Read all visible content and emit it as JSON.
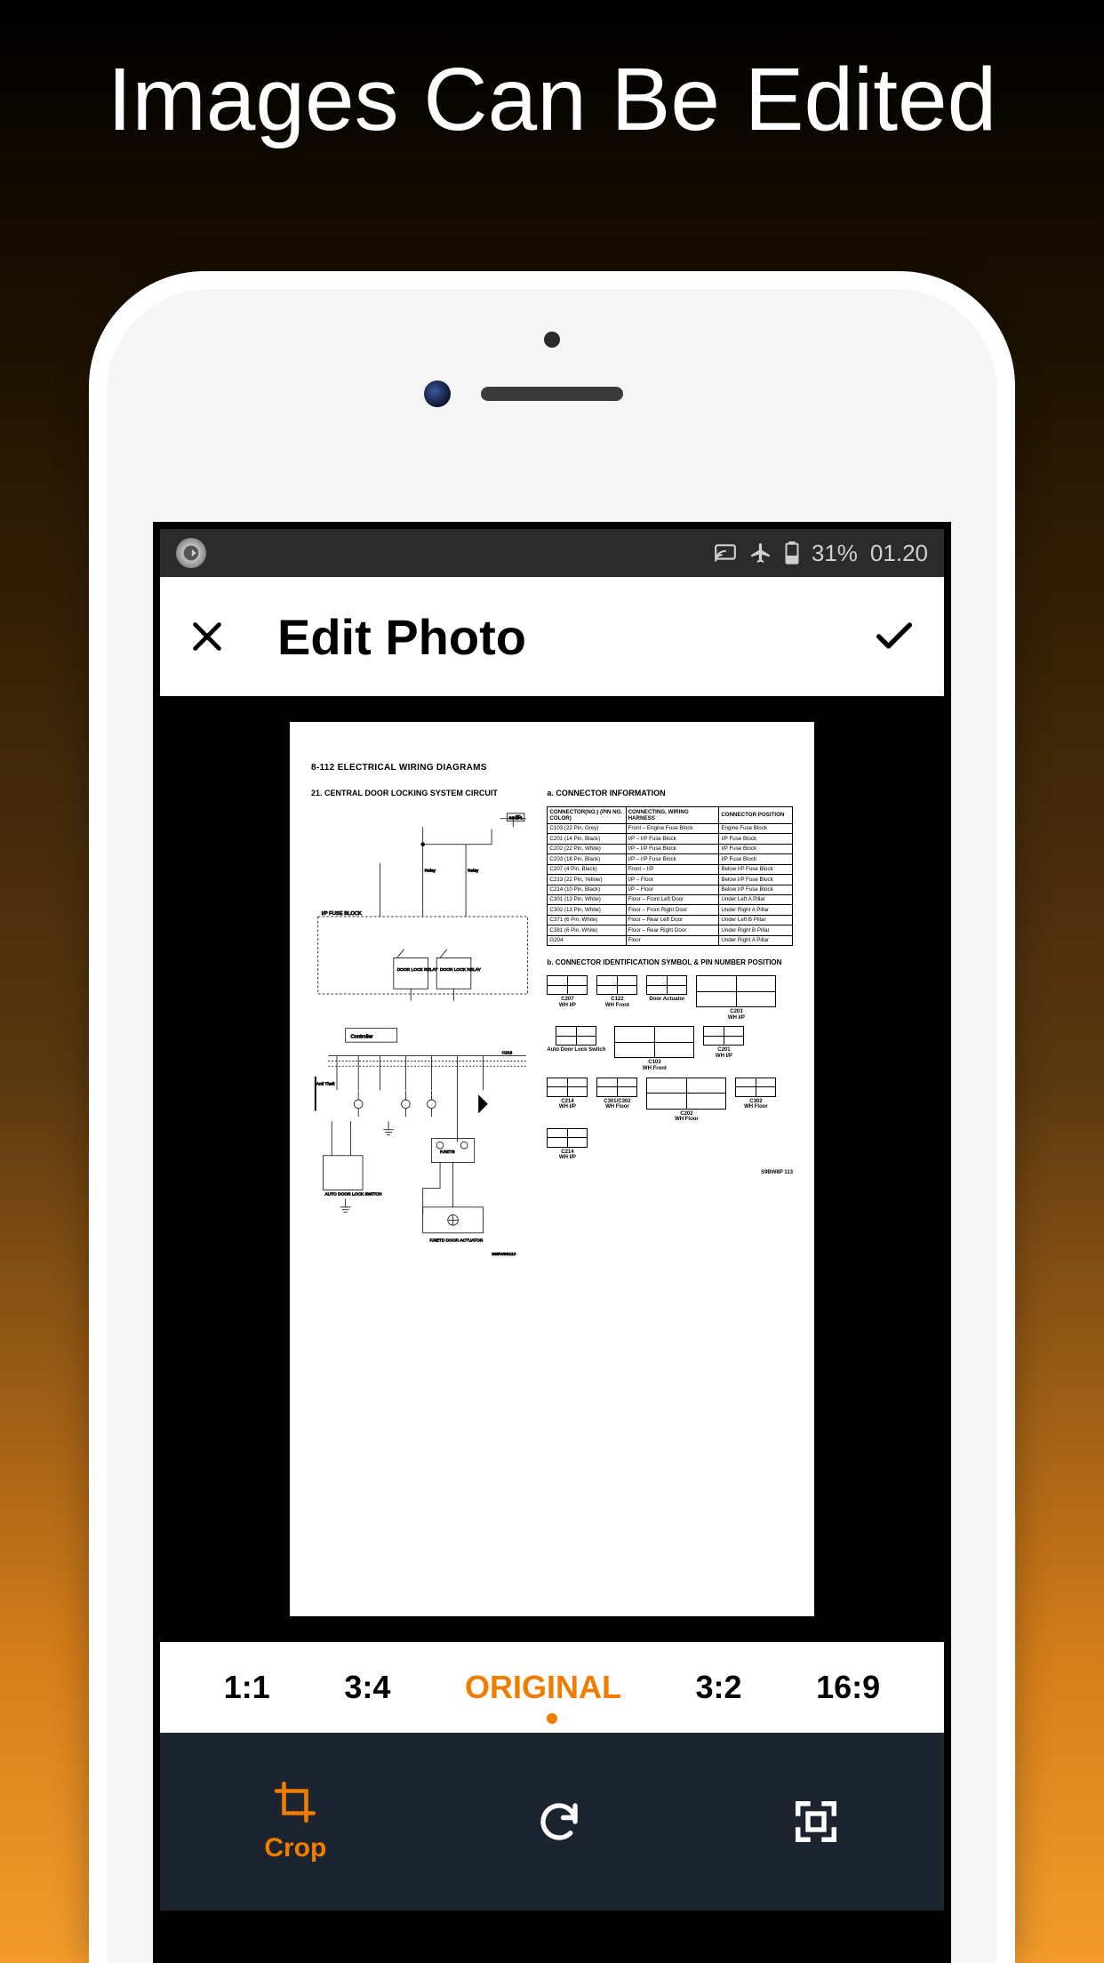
{
  "promo": {
    "title": "Images Can Be Edited"
  },
  "colors": {
    "accent": "#f07c00",
    "toolbar_bg": "#1c2430",
    "bg_gradient_top": "#000000",
    "bg_gradient_bottom": "#f39c2c"
  },
  "status": {
    "battery": "31%",
    "time": "01.20"
  },
  "appbar": {
    "title": "Edit Photo"
  },
  "ratios": {
    "options": [
      "1:1",
      "3:4",
      "ORIGINAL",
      "3:2",
      "16:9"
    ],
    "active_index": 2
  },
  "tools": {
    "items": [
      {
        "name": "crop",
        "label": "Crop"
      },
      {
        "name": "rotate",
        "label": ""
      },
      {
        "name": "fit",
        "label": ""
      }
    ],
    "active_index": 0
  },
  "document": {
    "page_header": "8-112   ELECTRICAL WIRING DIAGRAMS",
    "left_title": "21. CENTRAL DOOR LOCKING SYSTEM CIRCUIT",
    "right_title_a": "a. CONNECTOR INFORMATION",
    "right_title_b": "b. CONNECTOR IDENTIFICATION SYMBOL & PIN NUMBER POSITION",
    "conn_table": {
      "headers": [
        "CONNECTOR(NO.) (PIN NO. COLOR)",
        "CONNECTING, WIRING HARNESS",
        "CONNECTOR POSITION"
      ],
      "rows": [
        [
          "C103 (22 Pin, Grey)",
          "Front – Engine Fuse Block",
          "Engine Fuse Block"
        ],
        [
          "C201 (14 Pin, Black)",
          "I/P – I/P Fuse Block",
          "I/P Fuse Block"
        ],
        [
          "C202 (22 Pin, White)",
          "I/P – I/P Fuse Block",
          "I/P Fuse Block"
        ],
        [
          "C203 (18 Pin, Black)",
          "I/P – I/P Fuse Block",
          "I/P Fuse Block"
        ],
        [
          "C207 (4 Pin, Black)",
          "Front – I/P",
          "Below I/P Fuse Block"
        ],
        [
          "C213 (22 Pin, Yellow)",
          "I/P – Floor",
          "Below I/P Fuse Block"
        ],
        [
          "C214 (10 Pin, Black)",
          "I/P – Floor",
          "Below I/P Fuse Block"
        ],
        [
          "C301 (13 Pin, White)",
          "Floor – Front Left Door",
          "Under Left A Pillar"
        ],
        [
          "C302 (13 Pin, White)",
          "Floor – Front Right Door",
          "Under Right A Pillar"
        ],
        [
          "C371 (6 Pin, White)",
          "Floor – Rear Left Door",
          "Under Left B Pillar"
        ],
        [
          "C381 (6 Pin, White)",
          "Floor – Rear Right Door",
          "Under Right B Pillar"
        ],
        [
          "G204",
          "Floor",
          "Under Right A Pillar"
        ]
      ]
    },
    "circuit_labels": {
      "block": "I/P FUSE BLOCK",
      "relay1": "DOOR LOCK RELAY",
      "relay2": "DOOR LOCK RELAY",
      "controller": "Controller",
      "anti_theft": "Anti Theft Module",
      "retb": "F.RETB",
      "auto_lock": "AUTO DOOR LOCK SWITCH",
      "actuator": "F.RETD DOOR ACTUATOR",
      "ground_ref": "S301-1"
    },
    "connectors": [
      {
        "id": "C207",
        "sub": "WH I/P",
        "size": "small"
      },
      {
        "id": "C122",
        "sub": "WH Front",
        "size": "small"
      },
      {
        "id": "",
        "sub": "Door Actuator",
        "size": "small"
      },
      {
        "id": "C203",
        "sub": "WH I/P",
        "size": "big"
      },
      {
        "id": "",
        "sub": "Auto Door Lock Switch",
        "size": "small"
      },
      {
        "id": "C103",
        "sub": "WH Front",
        "size": "big"
      },
      {
        "id": "C201",
        "sub": "WH I/P",
        "size": "small"
      },
      {
        "id": "C214",
        "sub": "WH I/P",
        "size": "small"
      },
      {
        "id": "C301/C302",
        "sub": "WH Floor",
        "size": "small"
      },
      {
        "id": "C202",
        "sub": "WH Floor",
        "size": "big"
      },
      {
        "id": "C302",
        "sub": "WH Floor",
        "size": "small"
      },
      {
        "id": "C214",
        "sub": "WH I/P",
        "size": "small"
      }
    ],
    "footer": "S9BW8P 113"
  }
}
